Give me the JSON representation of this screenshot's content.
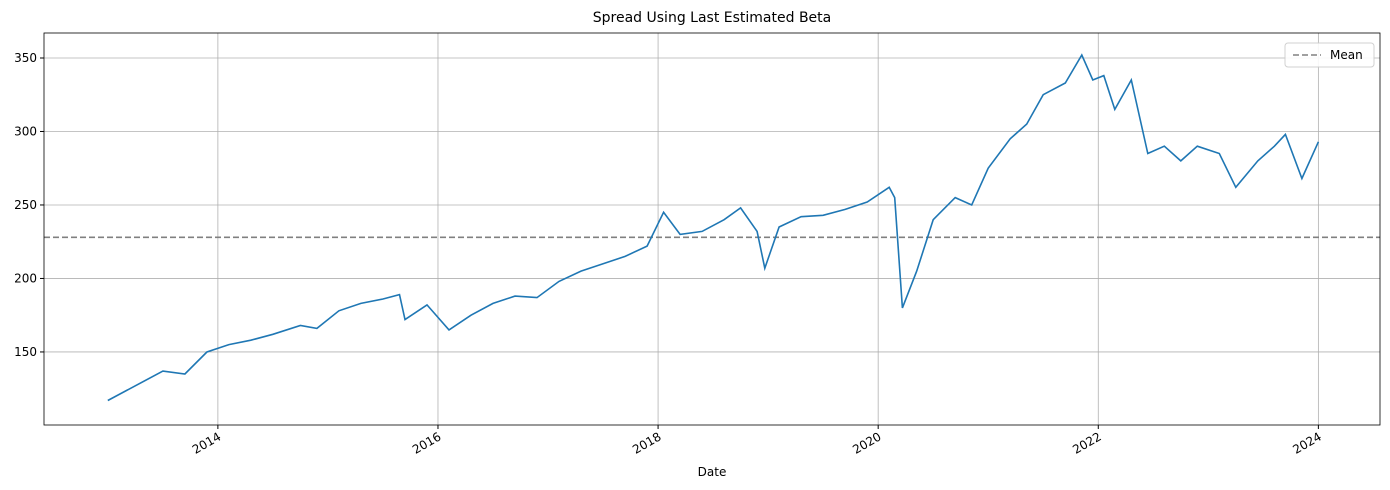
{
  "chart_data": {
    "type": "line",
    "title": "Spread Using Last Estimated Beta",
    "xlabel": "Date",
    "series": [
      {
        "color": "#1f77b4",
        "x": [
          2013.0,
          2013.25,
          2013.5,
          2013.7,
          2013.9,
          2014.1,
          2014.3,
          2014.5,
          2014.75,
          2014.9,
          2015.1,
          2015.3,
          2015.5,
          2015.65,
          2015.7,
          2015.9,
          2016.1,
          2016.3,
          2016.5,
          2016.7,
          2016.9,
          2017.1,
          2017.3,
          2017.5,
          2017.7,
          2017.9,
          2018.05,
          2018.2,
          2018.4,
          2018.6,
          2018.75,
          2018.9,
          2018.97,
          2019.1,
          2019.3,
          2019.5,
          2019.7,
          2019.9,
          2020.1,
          2020.15,
          2020.22,
          2020.35,
          2020.5,
          2020.7,
          2020.85,
          2021.0,
          2021.2,
          2021.35,
          2021.5,
          2021.7,
          2021.85,
          2021.95,
          2022.05,
          2022.15,
          2022.3,
          2022.45,
          2022.6,
          2022.75,
          2022.9,
          2023.1,
          2023.25,
          2023.45,
          2023.6,
          2023.7,
          2023.85,
          2024.0
        ],
        "values": [
          117,
          127,
          137,
          135,
          150,
          155,
          158,
          162,
          168,
          166,
          178,
          183,
          186,
          189,
          172,
          182,
          165,
          175,
          183,
          188,
          187,
          198,
          205,
          210,
          215,
          222,
          245,
          230,
          232,
          240,
          248,
          232,
          207,
          235,
          242,
          243,
          247,
          252,
          262,
          255,
          180,
          205,
          240,
          255,
          250,
          275,
          295,
          305,
          325,
          333,
          352,
          335,
          338,
          315,
          335,
          285,
          290,
          280,
          290,
          285,
          262,
          280,
          290,
          298,
          268,
          293
        ]
      }
    ],
    "hlines": [
      {
        "name": "Mean",
        "value": 228,
        "color": "#808080",
        "style": "dashed"
      }
    ],
    "xlim": [
      2012.42,
      2024.56
    ],
    "xticks": [
      2014,
      2016,
      2018,
      2020,
      2022,
      2024
    ],
    "ylim": [
      100.3,
      367
    ],
    "yticks": [
      150,
      200,
      250,
      300,
      350
    ],
    "grid": true,
    "legend": "upper right"
  }
}
